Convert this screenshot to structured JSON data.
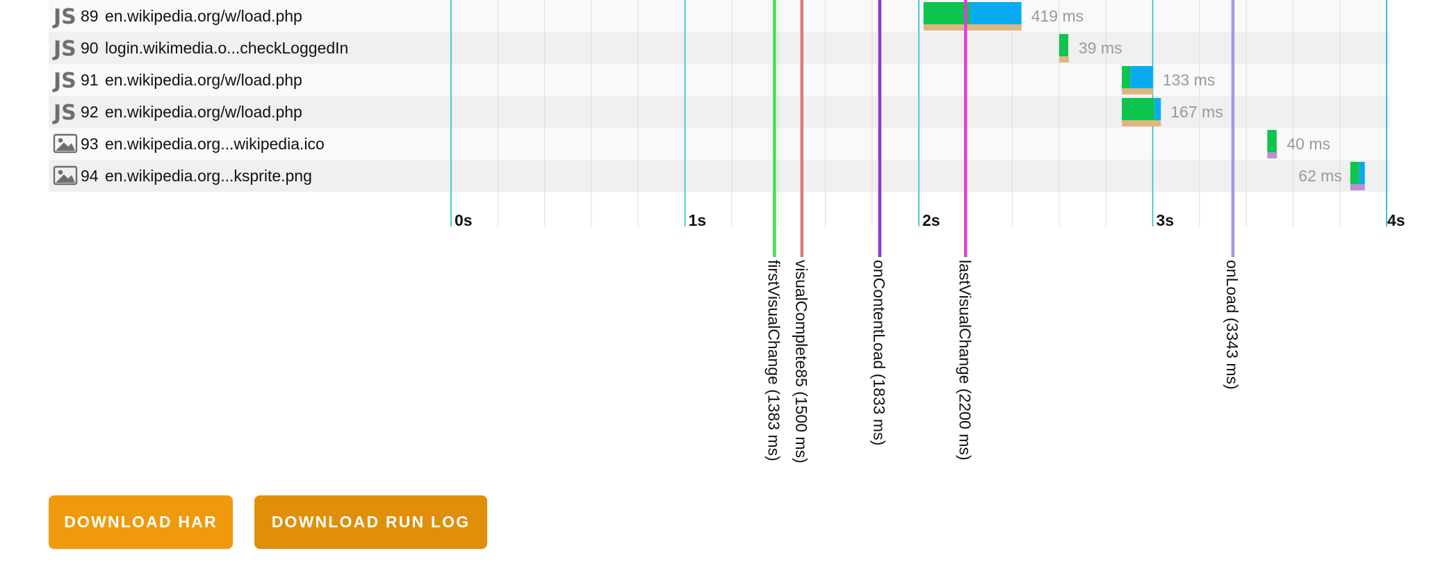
{
  "waterfall": {
    "ticks": [
      {
        "label": "0s",
        "ms": 0
      },
      {
        "label": "1s",
        "ms": 1000
      },
      {
        "label": "2s",
        "ms": 2000
      },
      {
        "label": "3s",
        "ms": 3000
      },
      {
        "label": "4s",
        "ms": 4000
      }
    ],
    "rows": [
      {
        "id": "89",
        "type": "js",
        "type_label": "JS",
        "url": "en.wikipedia.org/w/load.php",
        "start_ms": 2020,
        "duration_label": "419 ms",
        "segments": [
          {
            "kind": "wait",
            "ms": 200
          },
          {
            "kind": "receive",
            "ms": 219
          }
        ],
        "sub_kind": "blocked"
      },
      {
        "id": "90",
        "type": "js",
        "type_label": "JS",
        "url": "login.wikimedia.o...checkLoggedIn",
        "start_ms": 2600,
        "duration_label": "39 ms",
        "segments": [
          {
            "kind": "wait",
            "ms": 39
          }
        ],
        "sub_kind": "blocked"
      },
      {
        "id": "91",
        "type": "js",
        "type_label": "JS",
        "url": "en.wikipedia.org/w/load.php",
        "start_ms": 2868,
        "duration_label": "133 ms",
        "segments": [
          {
            "kind": "wait",
            "ms": 36
          },
          {
            "kind": "receive",
            "ms": 97
          }
        ],
        "sub_kind": "blocked",
        "sub_ms": 133
      },
      {
        "id": "92",
        "type": "js",
        "type_label": "JS",
        "url": "en.wikipedia.org/w/load.php",
        "start_ms": 2868,
        "duration_label": "167 ms",
        "segments": [
          {
            "kind": "wait",
            "ms": 140
          },
          {
            "kind": "receive",
            "ms": 27
          }
        ],
        "sub_kind": "blocked"
      },
      {
        "id": "93",
        "type": "image",
        "type_label": "",
        "url": "en.wikipedia.org...wikipedia.ico",
        "start_ms": 3490,
        "duration_label": "40 ms",
        "segments": [
          {
            "kind": "wait",
            "ms": 40
          }
        ],
        "sub_kind": "dns"
      },
      {
        "id": "94",
        "type": "image",
        "type_label": "",
        "url": "en.wikipedia.org...ksprite.png",
        "start_ms": 3845,
        "duration_label": "62 ms",
        "segments": [
          {
            "kind": "wait",
            "ms": 38
          },
          {
            "kind": "receive",
            "ms": 24
          }
        ],
        "sub_kind": "dns"
      }
    ],
    "marks": [
      {
        "label": "firstVisualChange (1383 ms)",
        "ms": 1383,
        "color": "#3de64a"
      },
      {
        "label": "visualComplete85 (1500 ms)",
        "ms": 1500,
        "color": "#e0797a"
      },
      {
        "label": "onContentLoad (1833 ms)",
        "ms": 1833,
        "color": "#8e35d8"
      },
      {
        "label": "lastVisualChange (2200 ms)",
        "ms": 2200,
        "color": "#de3ddd"
      },
      {
        "label": "onLoad (3343 ms)",
        "ms": 3343,
        "color": "#a796e4"
      }
    ],
    "colors": {
      "wait": "#0cc54e",
      "receive": "#0aaaf3",
      "blocked": "#deb77f",
      "dns": "#b98fd8",
      "tick_line": "#1fbfd6",
      "grid_line": "#dddddd"
    }
  },
  "buttons": {
    "download_har": "DOWNLOAD HAR",
    "download_run_log": "DOWNLOAD RUN LOG"
  }
}
